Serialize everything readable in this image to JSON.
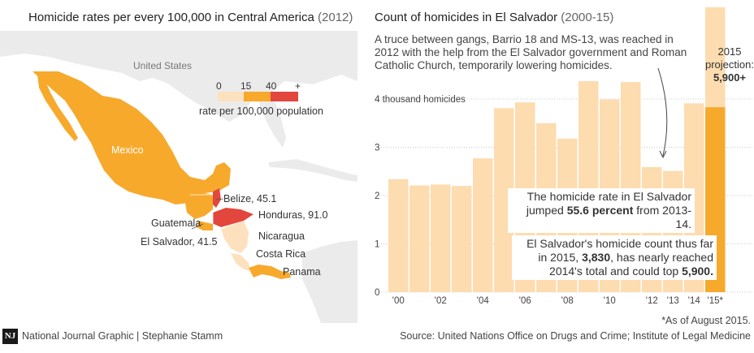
{
  "left": {
    "title_main": "Homicide rates per every 100,000 in Central America",
    "title_year": "(2012)",
    "legend": {
      "ticks": [
        "0",
        "15",
        "40",
        "+"
      ],
      "caption": "rate per 100,000 population",
      "colors": [
        "#fde1bf",
        "#f7a92c",
        "#e3463c"
      ]
    },
    "labels": {
      "us": "United States",
      "mexico": "Mexico",
      "belize": "Belize, 45.1",
      "guatemala": "Guatemala",
      "honduras": "Honduras, 91.0",
      "el_salvador": "El Salvador, 41.5",
      "nicaragua": "Nicaragua",
      "costa_rica": "Costa Rica",
      "panama": "Panama"
    },
    "colors": {
      "land_gray": "#ebebeb",
      "orange": "#f7a92c",
      "red": "#e3463c",
      "pale": "#fde1bf",
      "water": "#ffffff"
    }
  },
  "right": {
    "title_main": "Count of homicides in El Salvador",
    "title_years": "(2000-15)",
    "note": "A truce between gangs, Barrio 18 and MS-13, was reached in 2012 with the help from the El Salvador government and Roman Catholic Church, temporarily lowering homicides.",
    "projection": {
      "line1": "2015",
      "line2": "projection:",
      "value": "5,900+"
    },
    "callout1": {
      "pre": "The homicide rate in El Salvador jumped ",
      "bold": "55.6 percent",
      "post": " from 2013-14."
    },
    "callout2": {
      "pre": "El Salvador's homicide count thus far in 2015, ",
      "bold1": "3,830",
      "mid": ", has nearly reached 2014's total and could top ",
      "bold2": "5,900."
    }
  },
  "chart_data": {
    "type": "bar",
    "title": "Count of homicides in El Salvador (2000-15)",
    "y_tick_labels": [
      "0",
      "1",
      "2",
      "3",
      "4 thousand homicides"
    ],
    "ylim": [
      0,
      6
    ],
    "yticks": [
      0,
      1,
      2,
      3,
      4
    ],
    "x_tick_labels": [
      "'00",
      "'02",
      "'04",
      "'06",
      "'08",
      "'10",
      "'12",
      "'13",
      "'14",
      "'15*"
    ],
    "categories": [
      "2000",
      "2001",
      "2002",
      "2003",
      "2004",
      "2005",
      "2006",
      "2007",
      "2008",
      "2009",
      "2010",
      "2011",
      "2012",
      "2013",
      "2014",
      "2015"
    ],
    "values": [
      2.34,
      2.21,
      2.23,
      2.2,
      2.77,
      3.81,
      3.93,
      3.5,
      3.18,
      4.37,
      3.99,
      4.35,
      2.59,
      2.51,
      3.91,
      3.83
    ],
    "projection_2015": 5.9,
    "colors": {
      "bar": "#fddcb0",
      "current": "#f7a92c",
      "projection": "#fddcb0"
    },
    "grid": "dotted"
  },
  "footer": {
    "logo": "NJ",
    "credit": "National Journal Graphic  |  Stephanie Stamm",
    "asof": "*As of August 2015.",
    "source": "Source: United Nations Office on Drugs and Crime; Institute of Legal Medicine"
  }
}
